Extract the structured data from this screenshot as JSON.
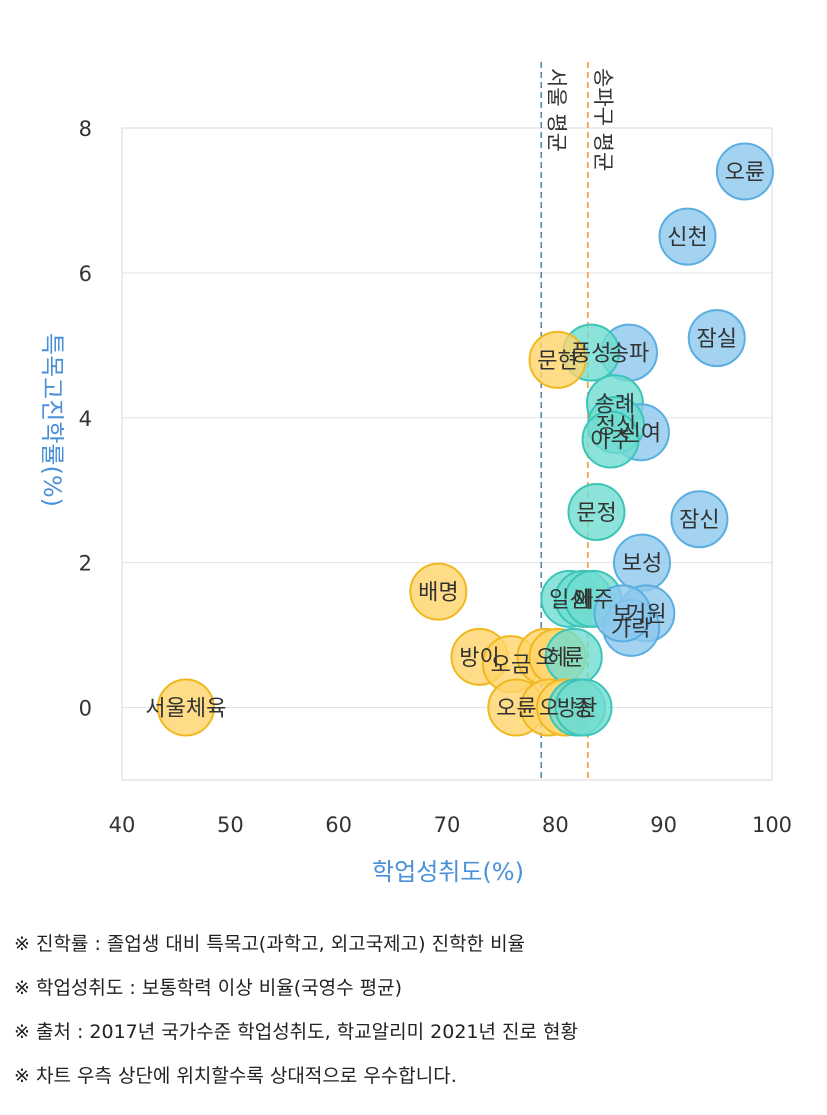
{
  "chart_data": {
    "type": "scatter",
    "xlabel": "학업성취도(%)",
    "ylabel": "특목고진학률(%)",
    "xlim": [
      40,
      100
    ],
    "ylim": [
      -1,
      8
    ],
    "x_ticks": [
      40,
      50,
      60,
      70,
      80,
      90,
      100
    ],
    "y_ticks": [
      0,
      2,
      4,
      6,
      8
    ],
    "grid": "horizontal",
    "reference_lines": [
      {
        "label": "서울 평균",
        "x": 78.7,
        "color": "#5b87a8"
      },
      {
        "label": "송파구 평균",
        "x": 83.0,
        "color": "#f0a030"
      }
    ],
    "group_colors": {
      "blue": {
        "fill": "#8cc8ee",
        "stroke": "#5aaee0"
      },
      "teal": {
        "fill": "#6fdcd0",
        "stroke": "#3cc4b8"
      },
      "yellow": {
        "fill": "#ffd46a",
        "stroke": "#f0b820"
      }
    },
    "points": [
      {
        "label": "오륜",
        "x": 97.5,
        "y": 7.4,
        "group": "blue"
      },
      {
        "label": "신천",
        "x": 92.2,
        "y": 6.5,
        "group": "blue"
      },
      {
        "label": "잠실",
        "x": 94.9,
        "y": 5.1,
        "group": "blue"
      },
      {
        "label": "송파",
        "x": 86.8,
        "y": 4.9,
        "group": "blue"
      },
      {
        "label": "풍성",
        "x": 83.3,
        "y": 4.9,
        "group": "teal"
      },
      {
        "label": "문현",
        "x": 80.2,
        "y": 4.8,
        "group": "yellow"
      },
      {
        "label": "송례",
        "x": 85.5,
        "y": 4.2,
        "group": "teal"
      },
      {
        "label": "신여",
        "x": 87.9,
        "y": 3.8,
        "group": "blue"
      },
      {
        "label": "정신",
        "x": 85.6,
        "y": 3.9,
        "group": "teal"
      },
      {
        "label": "아주",
        "x": 85.1,
        "y": 3.7,
        "group": "teal"
      },
      {
        "label": "문정",
        "x": 83.8,
        "y": 2.7,
        "group": "teal"
      },
      {
        "label": "잠신",
        "x": 93.3,
        "y": 2.6,
        "group": "blue"
      },
      {
        "label": "보성",
        "x": 88.0,
        "y": 2.0,
        "group": "blue"
      },
      {
        "label": "배명",
        "x": 69.2,
        "y": 1.6,
        "group": "yellow"
      },
      {
        "label": "일신",
        "x": 81.3,
        "y": 1.5,
        "group": "teal"
      },
      {
        "label": "세",
        "x": 82.6,
        "y": 1.5,
        "group": "teal"
      },
      {
        "label": "방이",
        "x": 73.0,
        "y": 0.7,
        "group": "yellow"
      },
      {
        "label": "아주",
        "x": 83.5,
        "y": 1.5,
        "group": "teal"
      },
      {
        "label": "거원",
        "x": 88.4,
        "y": 1.3,
        "group": "blue"
      },
      {
        "label": "가락",
        "x": 87.0,
        "y": 1.1,
        "group": "blue"
      },
      {
        "label": "보",
        "x": 86.2,
        "y": 1.3,
        "group": "blue"
      },
      {
        "label": "오금",
        "x": 75.9,
        "y": 0.6,
        "group": "yellow"
      },
      {
        "label": "오",
        "x": 79.1,
        "y": 0.7,
        "group": "yellow"
      },
      {
        "label": "헤",
        "x": 80.2,
        "y": 0.7,
        "group": "yellow"
      },
      {
        "label": "륜",
        "x": 81.7,
        "y": 0.7,
        "group": "teal"
      },
      {
        "label": "서울체육",
        "x": 45.9,
        "y": 0.0,
        "group": "yellow"
      },
      {
        "label": "오륜",
        "x": 76.4,
        "y": 0.0,
        "group": "yellow"
      },
      {
        "label": "오",
        "x": 79.4,
        "y": 0.0,
        "group": "yellow"
      },
      {
        "label": "",
        "x": 80.9,
        "y": 0.0,
        "group": "yellow"
      },
      {
        "label": "방산",
        "x": 82.0,
        "y": 0.0,
        "group": "teal"
      },
      {
        "label": "중",
        "x": 82.6,
        "y": 0.0,
        "group": "teal"
      }
    ]
  },
  "notes": [
    "※ 진학률 : 졸업생 대비 특목고(과학고, 외고국제고) 진학한 비율",
    "※ 학업성취도 : 보통학력 이상 비율(국영수 평균)",
    "※ 출처 : 2017년 국가수준 학업성취도, 학교알리미 2021년 진로 현황",
    "※ 차트 우측 상단에 위치할수록 상대적으로 우수합니다."
  ]
}
